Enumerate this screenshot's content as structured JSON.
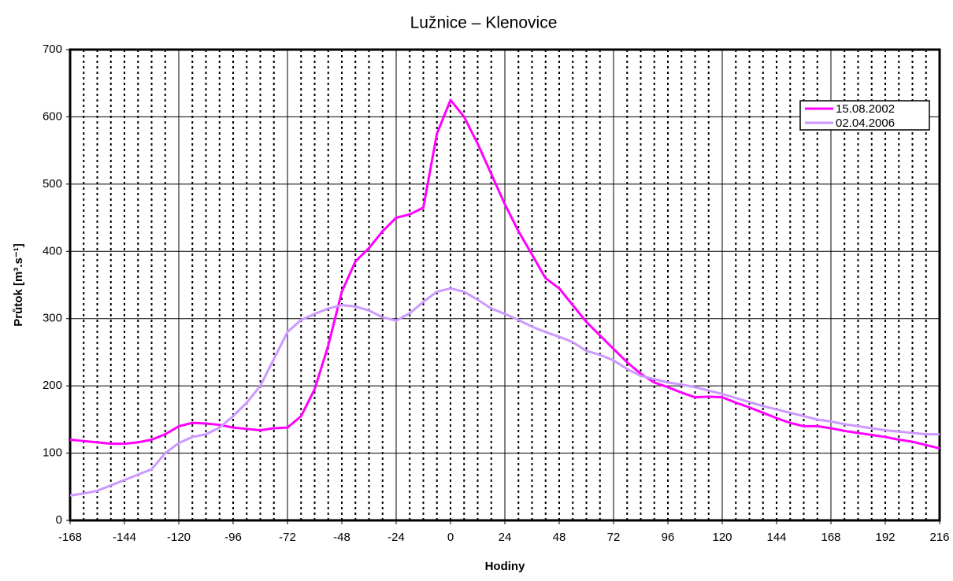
{
  "chart_data": {
    "type": "line",
    "title": "Lužnice – Klenovice",
    "x_label": "Hodiny",
    "y_label": "Průtok [m³.s⁻¹]",
    "x": [
      -168,
      -162,
      -156,
      -150,
      -144,
      -138,
      -132,
      -126,
      -120,
      -114,
      -108,
      -102,
      -96,
      -90,
      -84,
      -78,
      -72,
      -66,
      -60,
      -54,
      -48,
      -42,
      -36,
      -30,
      -24,
      -18,
      -12,
      -6,
      0,
      6,
      12,
      18,
      24,
      30,
      36,
      42,
      48,
      54,
      60,
      66,
      72,
      78,
      84,
      90,
      96,
      102,
      108,
      114,
      120,
      126,
      132,
      138,
      144,
      150,
      156,
      162,
      168,
      174,
      180,
      186,
      192,
      198,
      204,
      210,
      216
    ],
    "series": [
      {
        "name": "15.08.2002",
        "color": "#ff00ff",
        "values": [
          120,
          118,
          116,
          114,
          114,
          116,
          120,
          128,
          140,
          145,
          144,
          142,
          138,
          136,
          134,
          137,
          138,
          155,
          195,
          260,
          340,
          385,
          405,
          430,
          450,
          455,
          465,
          575,
          625,
          600,
          560,
          515,
          470,
          430,
          395,
          360,
          345,
          320,
          295,
          275,
          255,
          235,
          218,
          205,
          198,
          190,
          183,
          184,
          183,
          175,
          168,
          160,
          152,
          145,
          140,
          140,
          137,
          133,
          130,
          127,
          124,
          120,
          117,
          112,
          107
        ]
      },
      {
        "name": "02.04.2006",
        "color": "#cc99ff",
        "values": [
          37,
          40,
          44,
          52,
          60,
          68,
          76,
          100,
          115,
          124,
          128,
          138,
          155,
          175,
          200,
          240,
          280,
          298,
          307,
          315,
          320,
          318,
          312,
          302,
          297,
          308,
          325,
          340,
          345,
          340,
          328,
          315,
          307,
          298,
          288,
          280,
          273,
          265,
          252,
          246,
          238,
          225,
          215,
          210,
          205,
          202,
          198,
          193,
          188,
          182,
          176,
          170,
          165,
          160,
          155,
          150,
          147,
          143,
          140,
          137,
          134,
          132,
          130,
          128,
          128
        ]
      }
    ],
    "xlim": [
      -168,
      216
    ],
    "xticks": [
      -168,
      -144,
      -120,
      -96,
      -72,
      -48,
      -24,
      0,
      24,
      48,
      72,
      96,
      120,
      144,
      168,
      192,
      216
    ],
    "ylim": [
      0,
      700
    ],
    "yticks": [
      0,
      100,
      200,
      300,
      400,
      500,
      600,
      700
    ],
    "xgrid_major": [
      -120,
      -72,
      -24,
      24,
      72,
      120,
      168
    ],
    "xgrid_minor": [
      -162,
      -156,
      -150,
      -144,
      -138,
      -132,
      -126,
      -114,
      -108,
      -102,
      -96,
      -90,
      -84,
      -78,
      -66,
      -60,
      -54,
      -48,
      -42,
      -36,
      -30,
      -18,
      -12,
      -6,
      0,
      6,
      12,
      18,
      30,
      36,
      42,
      48,
      54,
      60,
      66,
      78,
      84,
      90,
      96,
      102,
      108,
      114,
      126,
      132,
      138,
      144,
      150,
      156,
      162,
      174,
      180,
      186,
      192,
      198,
      204,
      210
    ],
    "grid": true,
    "legend": "upper right"
  }
}
